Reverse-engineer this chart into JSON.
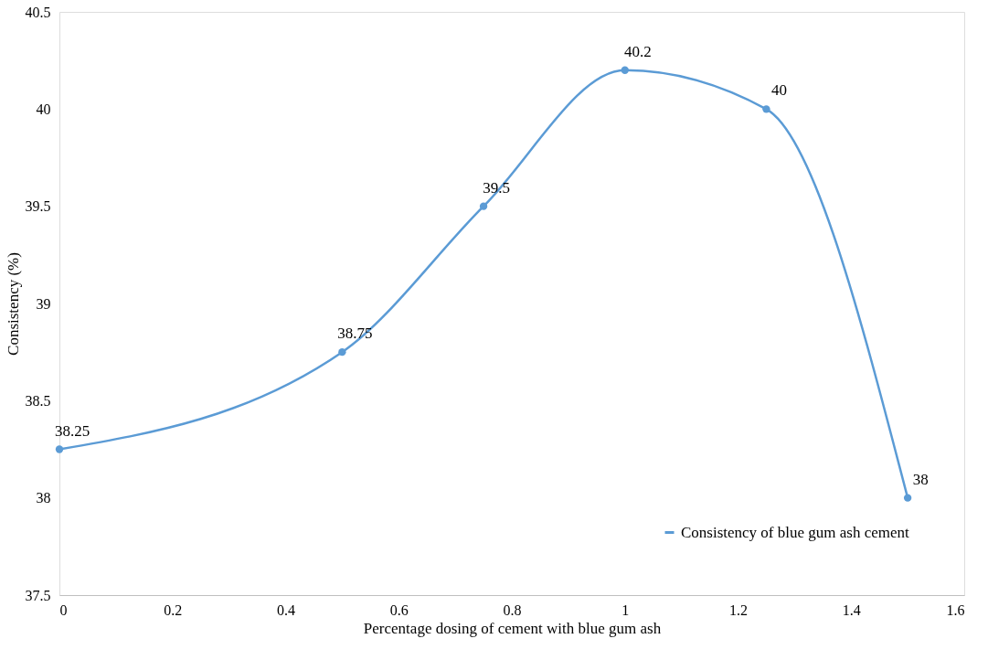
{
  "chart_data": {
    "type": "line",
    "xlabel": "Percentage dosing of cement with blue gum ash",
    "ylabel": "Consistency (%)",
    "x": [
      0,
      0.5,
      0.75,
      1,
      1.25,
      1.5
    ],
    "series": [
      {
        "name": "Consistency of blue gum ash cement",
        "color": "#5b9bd5",
        "values": [
          38.25,
          38.75,
          39.5,
          40.2,
          40,
          38
        ]
      }
    ],
    "xlim": [
      0,
      1.6
    ],
    "xticks": [
      0,
      0.2,
      0.4,
      0.6,
      0.8,
      1,
      1.2,
      1.4,
      1.6
    ],
    "ylim": [
      37.5,
      40.5
    ],
    "yticks": [
      37.5,
      38,
      38.5,
      39,
      39.5,
      40,
      40.5
    ],
    "data_labels": true,
    "grid": false,
    "legend": "bottom right",
    "marker": "circle",
    "line_style": "solid"
  }
}
